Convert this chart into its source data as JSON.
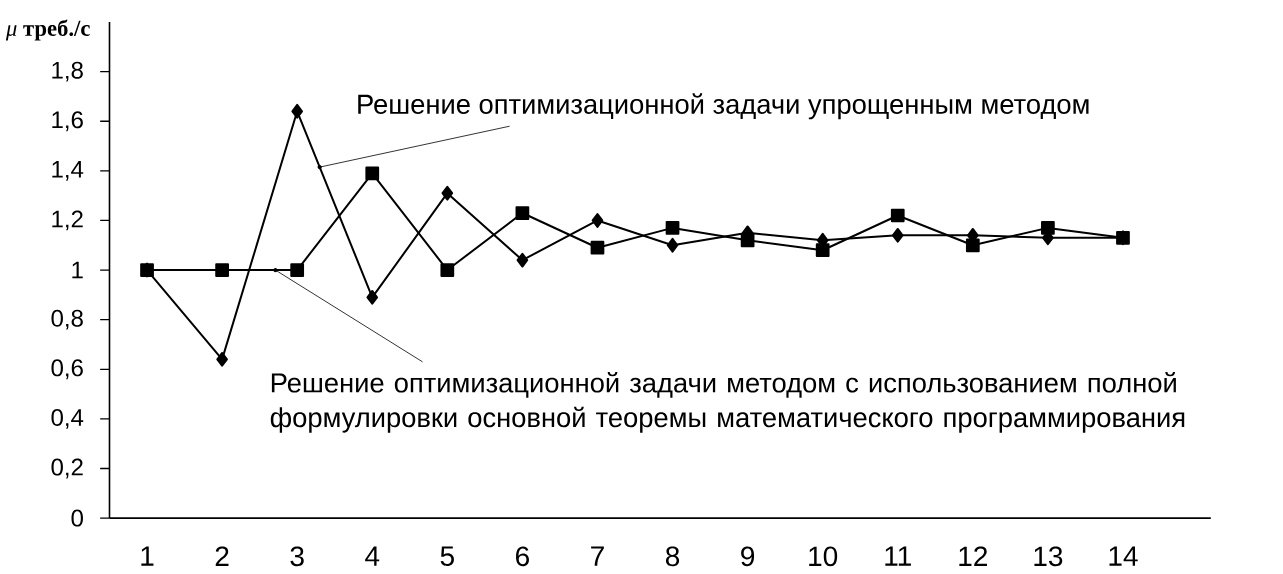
{
  "chart_data": {
    "type": "line",
    "ylabel": "*μ* **треб./с**",
    "categories": [
      "1",
      "2",
      "3",
      "4",
      "5",
      "6",
      "7",
      "8",
      "9",
      "10",
      "11",
      "12",
      "13",
      "14"
    ],
    "series": [
      {
        "name": "Решение оптимизационной задачи упрощенным методом",
        "color": "#000000",
        "marker": "diamond",
        "values": [
          1,
          0.64,
          1.64,
          0.89,
          1.31,
          1.04,
          1.2,
          1.1,
          1.15,
          1.12,
          1.14,
          1.14,
          1.13,
          1.13
        ]
      },
      {
        "name": "Решение оптимизационной задачи методом с использованием полной формулировки основной теоремы математического программирования",
        "color": "#000000",
        "marker": "square",
        "values": [
          1,
          1,
          1,
          1.39,
          1,
          1.23,
          1.09,
          1.17,
          1.12,
          1.08,
          1.22,
          1.1,
          1.17,
          1.13
        ]
      }
    ],
    "ylim": [
      0,
      2
    ],
    "yticks": [
      0,
      {
        "value": 0.2,
        "label": "0,2"
      },
      {
        "value": 0.4,
        "label": "0,4"
      },
      {
        "value": 0.6,
        "label": "0,6"
      },
      {
        "value": 0.8,
        "label": "0,8"
      },
      1,
      {
        "value": 1.2,
        "label": "1,2"
      },
      {
        "value": 1.4,
        "label": "1,4"
      },
      {
        "value": 1.6,
        "label": "1,6"
      },
      {
        "value": 1.8,
        "label": "1,8"
      }
    ],
    "grid": false,
    "line_style": "solid"
  }
}
